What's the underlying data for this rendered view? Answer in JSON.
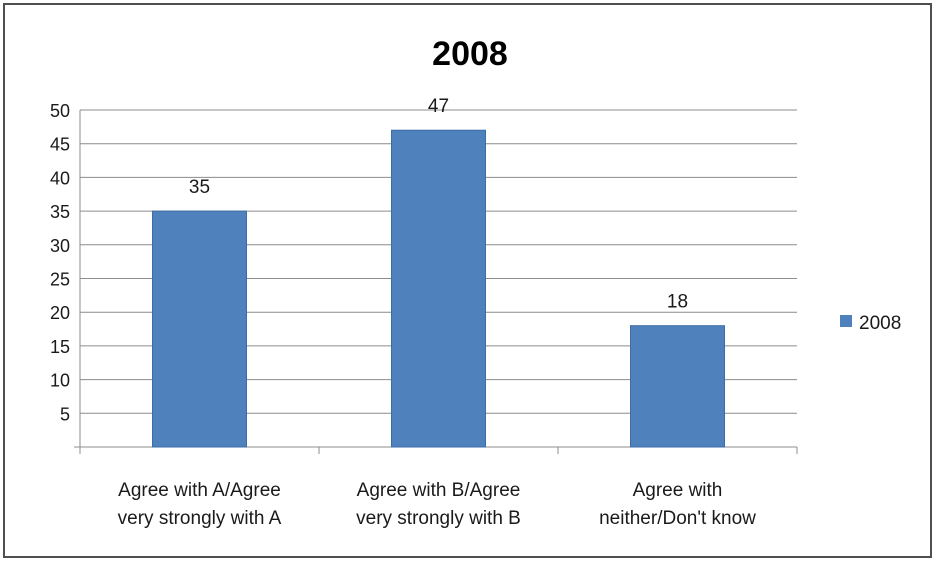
{
  "chart_data": {
    "type": "bar",
    "title": "2008",
    "categories": [
      [
        "Agree with A/Agree",
        "very strongly with A"
      ],
      [
        "Agree with B/Agree",
        "very strongly with B"
      ],
      [
        "Agree with",
        "neither/Don't know"
      ]
    ],
    "series": [
      {
        "name": "2008",
        "values": [
          35,
          47,
          18
        ],
        "color": "#4f81bd"
      }
    ],
    "data_labels": [
      "35",
      "47",
      "18"
    ],
    "y_ticks": [
      5,
      10,
      15,
      20,
      25,
      30,
      35,
      40,
      45,
      50
    ],
    "ylim": [
      0,
      50
    ],
    "grid": true,
    "legend_position": "right"
  }
}
